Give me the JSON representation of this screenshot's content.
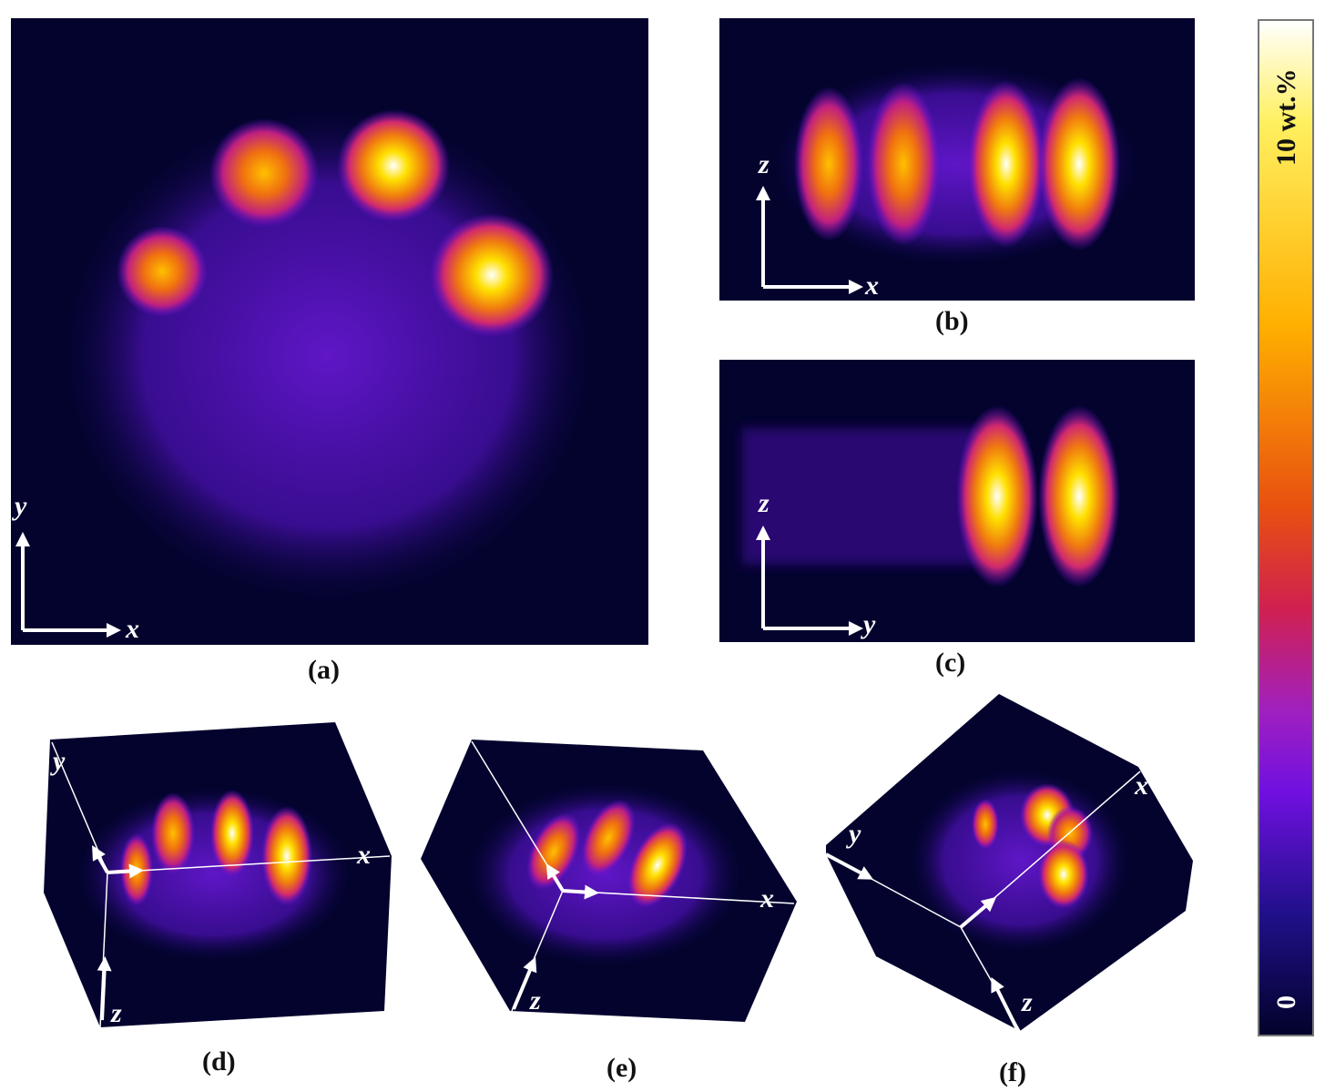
{
  "panels": [
    {
      "id": "a",
      "label": "(a)",
      "axes": [
        "x",
        "y"
      ]
    },
    {
      "id": "b",
      "label": "(b)",
      "axes": [
        "x",
        "z"
      ]
    },
    {
      "id": "c",
      "label": "(c)",
      "axes": [
        "y",
        "z"
      ]
    },
    {
      "id": "d",
      "label": "(d)",
      "axes": [
        "x",
        "y",
        "z"
      ]
    },
    {
      "id": "e",
      "label": "(e)",
      "axes": [
        "x",
        "z"
      ]
    },
    {
      "id": "f",
      "label": "(f)",
      "axes": [
        "x",
        "y",
        "z"
      ]
    }
  ],
  "colorbar": {
    "max_label": "10 wt.%",
    "min_label": "0",
    "colors": [
      "#ffffff",
      "#ffe000",
      "#f08010",
      "#e03020",
      "#c0208a",
      "#7010e0",
      "#20107a",
      "#02022a"
    ]
  }
}
